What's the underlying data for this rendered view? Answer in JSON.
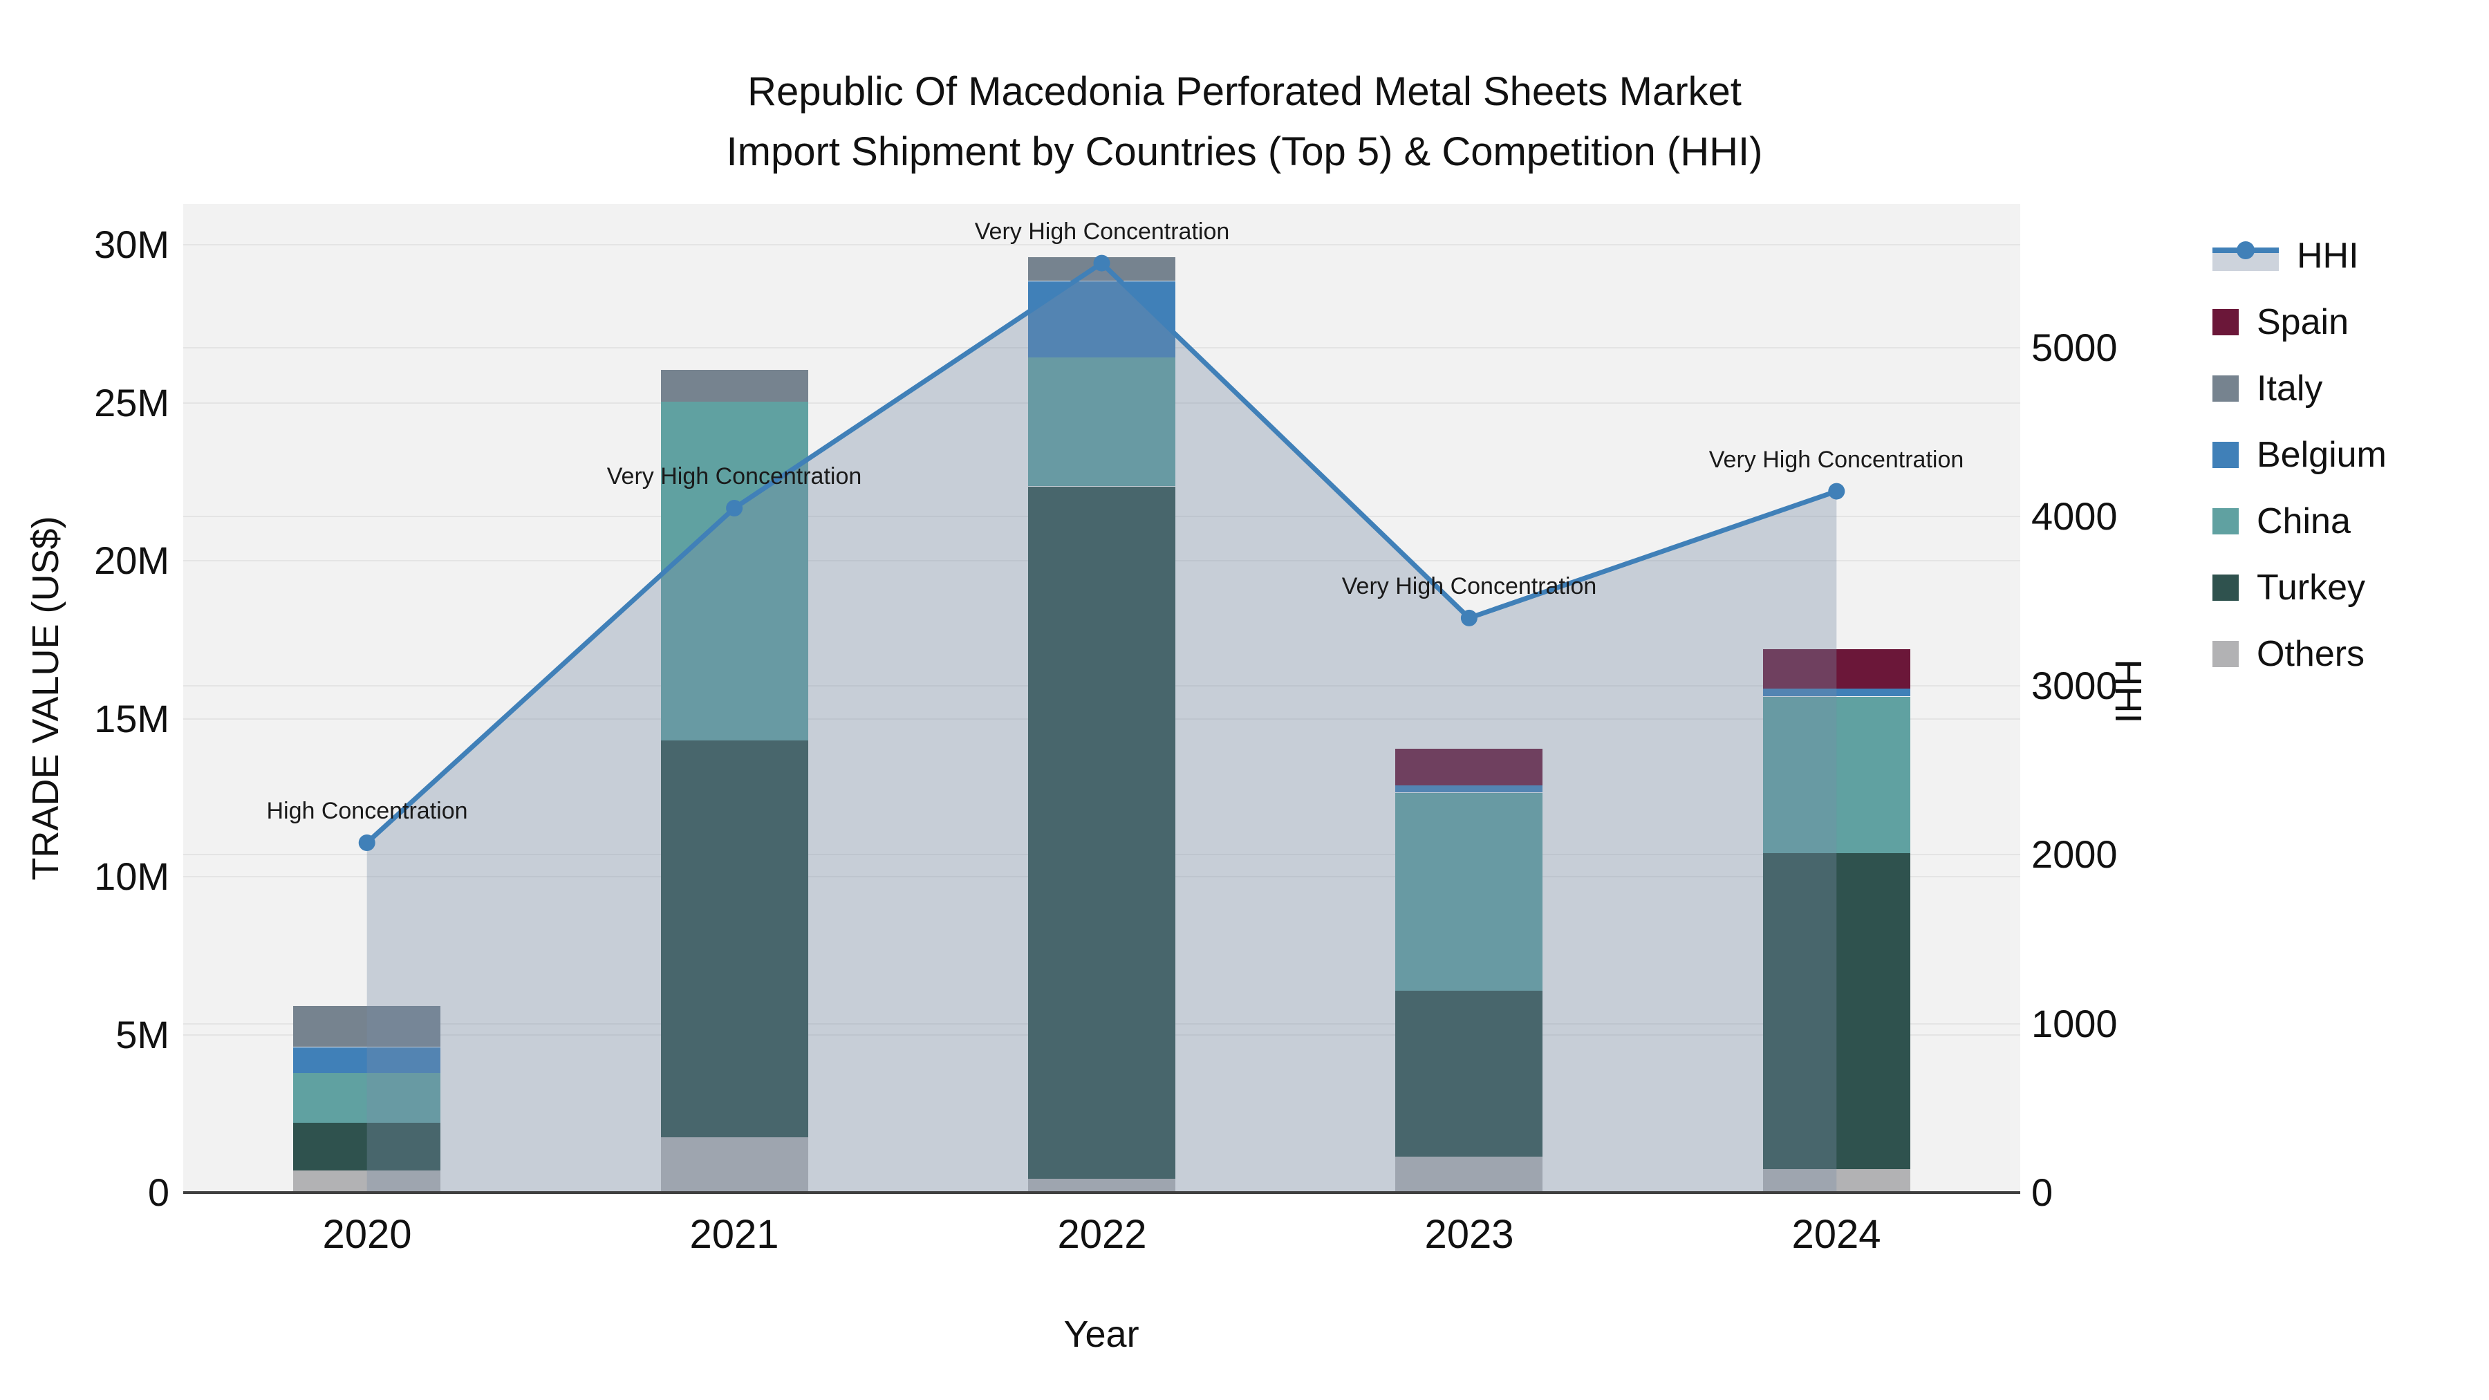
{
  "title": {
    "line1": "Republic Of Macedonia Perforated Metal Sheets Market",
    "line2": "Import Shipment by Countries (Top 5) & Competition (HHI)"
  },
  "axes": {
    "x_title": "Year",
    "y_left_title": "TRADE VALUE (US$)",
    "y_right_title": "HHI",
    "y_left_ticks": [
      "0",
      "5M",
      "10M",
      "15M",
      "20M",
      "25M",
      "30M"
    ],
    "y_left_tick_values_millions": [
      0,
      5,
      10,
      15,
      20,
      25,
      30
    ],
    "y_right_ticks": [
      "0",
      "1000",
      "2000",
      "3000",
      "4000",
      "5000"
    ],
    "y_right_tick_values": [
      0,
      1000,
      2000,
      3000,
      4000,
      5000
    ]
  },
  "legend": {
    "items": [
      "HHI",
      "Spain",
      "Italy",
      "Belgium",
      "China",
      "Turkey",
      "Others"
    ]
  },
  "colors": {
    "spain": "#6b1739",
    "italy": "#76838f",
    "belgium": "#4080b8",
    "china": "#60a1a1",
    "turkey": "#2f524e",
    "others": "#b2b2b4",
    "hhi_line": "#4080b8",
    "hhi_fill": "rgba(120,140,165,0.35)",
    "plot_background": "#f2f2f2",
    "gridline": "#e4e4e4",
    "axis_line": "#3f3f3f"
  },
  "chart_data": {
    "type": "bar+line",
    "title": "Republic Of Macedonia Perforated Metal Sheets Market Import Shipment by Countries (Top 5) & Competition (HHI)",
    "categories": [
      "2020",
      "2021",
      "2022",
      "2023",
      "2024"
    ],
    "xlabel": "Year",
    "ylabel_left": "TRADE VALUE (US$)",
    "ylabel_right": "HHI",
    "values_unit": "million US$",
    "stack_order_bottom_to_top": [
      "Others",
      "Turkey",
      "China",
      "Belgium",
      "Italy",
      "Spain"
    ],
    "series": [
      {
        "name": "Others",
        "color": "#b2b2b4",
        "values": [
          0.7,
          1.75,
          0.45,
          1.15,
          0.75
        ]
      },
      {
        "name": "Turkey",
        "color": "#2f524e",
        "values": [
          1.5,
          12.55,
          21.9,
          5.25,
          10.0
        ]
      },
      {
        "name": "China",
        "color": "#60a1a1",
        "values": [
          1.6,
          10.75,
          4.1,
          6.25,
          4.95
        ]
      },
      {
        "name": "Belgium",
        "color": "#4080b8",
        "values": [
          0.8,
          0,
          2.4,
          0.25,
          0.25
        ]
      },
      {
        "name": "Italy",
        "color": "#76838f",
        "values": [
          1.3,
          1.0,
          0.75,
          0,
          0
        ]
      },
      {
        "name": "Spain",
        "color": "#6b1739",
        "values": [
          0,
          0,
          0,
          1.15,
          1.25
        ]
      }
    ],
    "bar_totals_millions": [
      5.9,
      26.05,
      29.6,
      14.05,
      17.2
    ],
    "line_series": {
      "name": "HHI",
      "color": "#4080b8",
      "fill": "rgba(120,140,165,0.35)",
      "values": [
        2070,
        4050,
        5500,
        3400,
        4150
      ]
    },
    "annotations": [
      {
        "year": "2020",
        "text": "High Concentration"
      },
      {
        "year": "2021",
        "text": "Very High Concentration"
      },
      {
        "year": "2022",
        "text": "Very High Concentration"
      },
      {
        "year": "2023",
        "text": "Very High Concentration"
      },
      {
        "year": "2024",
        "text": "Very High Concentration"
      }
    ],
    "y_left_range_millions": [
      0,
      31.3
    ],
    "y_right_range": [
      0,
      5850
    ],
    "grid": true,
    "legend_position": "right"
  }
}
